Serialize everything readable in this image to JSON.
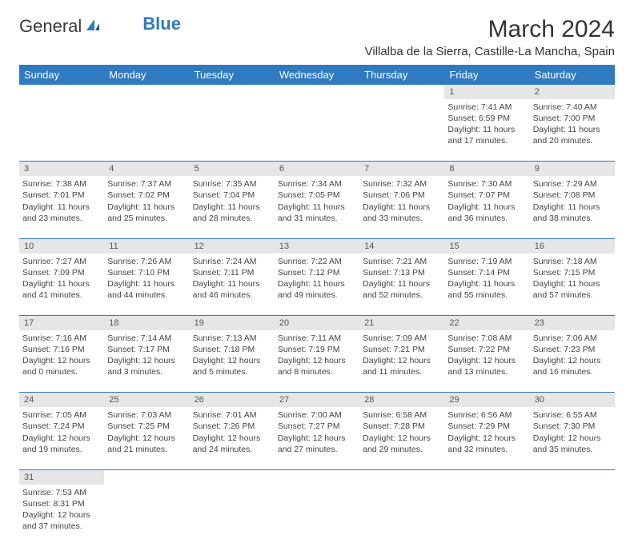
{
  "logo": {
    "text1": "General",
    "text2": "Blue"
  },
  "title": "March 2024",
  "location": "Villalba de la Sierra, Castille-La Mancha, Spain",
  "weekdays": [
    "Sunday",
    "Monday",
    "Tuesday",
    "Wednesday",
    "Thursday",
    "Friday",
    "Saturday"
  ],
  "colors": {
    "header_bg": "#2f7ac0",
    "header_fg": "#ffffff",
    "daynum_bg": "#e6e6e6",
    "border": "#2f7ac0"
  },
  "weeks": [
    [
      null,
      null,
      null,
      null,
      null,
      {
        "n": "1",
        "sr": "Sunrise: 7:41 AM",
        "ss": "Sunset: 6:59 PM",
        "d1": "Daylight: 11 hours",
        "d2": "and 17 minutes."
      },
      {
        "n": "2",
        "sr": "Sunrise: 7:40 AM",
        "ss": "Sunset: 7:00 PM",
        "d1": "Daylight: 11 hours",
        "d2": "and 20 minutes."
      }
    ],
    [
      {
        "n": "3",
        "sr": "Sunrise: 7:38 AM",
        "ss": "Sunset: 7:01 PM",
        "d1": "Daylight: 11 hours",
        "d2": "and 23 minutes."
      },
      {
        "n": "4",
        "sr": "Sunrise: 7:37 AM",
        "ss": "Sunset: 7:02 PM",
        "d1": "Daylight: 11 hours",
        "d2": "and 25 minutes."
      },
      {
        "n": "5",
        "sr": "Sunrise: 7:35 AM",
        "ss": "Sunset: 7:04 PM",
        "d1": "Daylight: 11 hours",
        "d2": "and 28 minutes."
      },
      {
        "n": "6",
        "sr": "Sunrise: 7:34 AM",
        "ss": "Sunset: 7:05 PM",
        "d1": "Daylight: 11 hours",
        "d2": "and 31 minutes."
      },
      {
        "n": "7",
        "sr": "Sunrise: 7:32 AM",
        "ss": "Sunset: 7:06 PM",
        "d1": "Daylight: 11 hours",
        "d2": "and 33 minutes."
      },
      {
        "n": "8",
        "sr": "Sunrise: 7:30 AM",
        "ss": "Sunset: 7:07 PM",
        "d1": "Daylight: 11 hours",
        "d2": "and 36 minutes."
      },
      {
        "n": "9",
        "sr": "Sunrise: 7:29 AM",
        "ss": "Sunset: 7:08 PM",
        "d1": "Daylight: 11 hours",
        "d2": "and 38 minutes."
      }
    ],
    [
      {
        "n": "10",
        "sr": "Sunrise: 7:27 AM",
        "ss": "Sunset: 7:09 PM",
        "d1": "Daylight: 11 hours",
        "d2": "and 41 minutes."
      },
      {
        "n": "11",
        "sr": "Sunrise: 7:26 AM",
        "ss": "Sunset: 7:10 PM",
        "d1": "Daylight: 11 hours",
        "d2": "and 44 minutes."
      },
      {
        "n": "12",
        "sr": "Sunrise: 7:24 AM",
        "ss": "Sunset: 7:11 PM",
        "d1": "Daylight: 11 hours",
        "d2": "and 46 minutes."
      },
      {
        "n": "13",
        "sr": "Sunrise: 7:22 AM",
        "ss": "Sunset: 7:12 PM",
        "d1": "Daylight: 11 hours",
        "d2": "and 49 minutes."
      },
      {
        "n": "14",
        "sr": "Sunrise: 7:21 AM",
        "ss": "Sunset: 7:13 PM",
        "d1": "Daylight: 11 hours",
        "d2": "and 52 minutes."
      },
      {
        "n": "15",
        "sr": "Sunrise: 7:19 AM",
        "ss": "Sunset: 7:14 PM",
        "d1": "Daylight: 11 hours",
        "d2": "and 55 minutes."
      },
      {
        "n": "16",
        "sr": "Sunrise: 7:18 AM",
        "ss": "Sunset: 7:15 PM",
        "d1": "Daylight: 11 hours",
        "d2": "and 57 minutes."
      }
    ],
    [
      {
        "n": "17",
        "sr": "Sunrise: 7:16 AM",
        "ss": "Sunset: 7:16 PM",
        "d1": "Daylight: 12 hours",
        "d2": "and 0 minutes."
      },
      {
        "n": "18",
        "sr": "Sunrise: 7:14 AM",
        "ss": "Sunset: 7:17 PM",
        "d1": "Daylight: 12 hours",
        "d2": "and 3 minutes."
      },
      {
        "n": "19",
        "sr": "Sunrise: 7:13 AM",
        "ss": "Sunset: 7:18 PM",
        "d1": "Daylight: 12 hours",
        "d2": "and 5 minutes."
      },
      {
        "n": "20",
        "sr": "Sunrise: 7:11 AM",
        "ss": "Sunset: 7:19 PM",
        "d1": "Daylight: 12 hours",
        "d2": "and 8 minutes."
      },
      {
        "n": "21",
        "sr": "Sunrise: 7:09 AM",
        "ss": "Sunset: 7:21 PM",
        "d1": "Daylight: 12 hours",
        "d2": "and 11 minutes."
      },
      {
        "n": "22",
        "sr": "Sunrise: 7:08 AM",
        "ss": "Sunset: 7:22 PM",
        "d1": "Daylight: 12 hours",
        "d2": "and 13 minutes."
      },
      {
        "n": "23",
        "sr": "Sunrise: 7:06 AM",
        "ss": "Sunset: 7:23 PM",
        "d1": "Daylight: 12 hours",
        "d2": "and 16 minutes."
      }
    ],
    [
      {
        "n": "24",
        "sr": "Sunrise: 7:05 AM",
        "ss": "Sunset: 7:24 PM",
        "d1": "Daylight: 12 hours",
        "d2": "and 19 minutes."
      },
      {
        "n": "25",
        "sr": "Sunrise: 7:03 AM",
        "ss": "Sunset: 7:25 PM",
        "d1": "Daylight: 12 hours",
        "d2": "and 21 minutes."
      },
      {
        "n": "26",
        "sr": "Sunrise: 7:01 AM",
        "ss": "Sunset: 7:26 PM",
        "d1": "Daylight: 12 hours",
        "d2": "and 24 minutes."
      },
      {
        "n": "27",
        "sr": "Sunrise: 7:00 AM",
        "ss": "Sunset: 7:27 PM",
        "d1": "Daylight: 12 hours",
        "d2": "and 27 minutes."
      },
      {
        "n": "28",
        "sr": "Sunrise: 6:58 AM",
        "ss": "Sunset: 7:28 PM",
        "d1": "Daylight: 12 hours",
        "d2": "and 29 minutes."
      },
      {
        "n": "29",
        "sr": "Sunrise: 6:56 AM",
        "ss": "Sunset: 7:29 PM",
        "d1": "Daylight: 12 hours",
        "d2": "and 32 minutes."
      },
      {
        "n": "30",
        "sr": "Sunrise: 6:55 AM",
        "ss": "Sunset: 7:30 PM",
        "d1": "Daylight: 12 hours",
        "d2": "and 35 minutes."
      }
    ],
    [
      {
        "n": "31",
        "sr": "Sunrise: 7:53 AM",
        "ss": "Sunset: 8:31 PM",
        "d1": "Daylight: 12 hours",
        "d2": "and 37 minutes."
      },
      null,
      null,
      null,
      null,
      null,
      null
    ]
  ]
}
